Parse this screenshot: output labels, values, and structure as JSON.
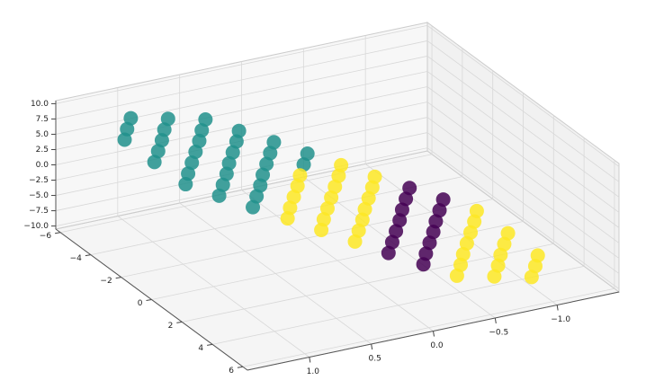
{
  "chart_data": {
    "type": "scatter3d",
    "xlim": [
      -1.5,
      1.5
    ],
    "ylim": [
      -6.3,
      6.3
    ],
    "zlim": [
      -10.5,
      10.5
    ],
    "xticks": [
      {
        "value": -1.0,
        "label": "−1.0"
      },
      {
        "value": -0.5,
        "label": "−0.5"
      },
      {
        "value": 0.0,
        "label": "0.0"
      },
      {
        "value": 0.5,
        "label": "0.5"
      },
      {
        "value": 1.0,
        "label": "1.0"
      }
    ],
    "yticks": [
      {
        "value": -6,
        "label": "−6"
      },
      {
        "value": -4,
        "label": "−4"
      },
      {
        "value": -2,
        "label": "−2"
      },
      0,
      2,
      4,
      6
    ],
    "zticks": [
      {
        "value": -10,
        "label": "−10.0"
      },
      {
        "value": -7.5,
        "label": "−7.5"
      },
      {
        "value": -5,
        "label": "−5.0"
      },
      {
        "value": -2.5,
        "label": "−2.5"
      },
      {
        "value": 0,
        "label": "0.0"
      },
      {
        "value": 2.5,
        "label": "2.5"
      },
      {
        "value": 5,
        "label": "5.0"
      },
      {
        "value": 7.5,
        "label": "7.5"
      },
      {
        "value": 10,
        "label": "10.0"
      }
    ],
    "grid": true,
    "series": [
      {
        "color": "#21918c",
        "x": [
          1.06,
          1.09,
          1.11,
          0.86,
          0.89,
          0.91,
          0.94,
          0.97,
          0.66,
          0.69,
          0.71,
          0.74,
          0.77,
          0.8,
          0.82,
          0.49,
          0.51,
          0.54,
          0.57,
          0.59,
          0.62,
          0.65,
          0.31,
          0.34,
          0.37,
          0.4,
          0.42,
          0.45,
          0.48,
          0.14,
          0.17
        ],
        "y": [
          -4.95,
          -4.95,
          -4.95,
          -4.13,
          -4.13,
          -4.13,
          -4.13,
          -4.13,
          -3.3,
          -3.3,
          -3.3,
          -3.3,
          -3.3,
          -3.3,
          -3.3,
          -2.48,
          -2.48,
          -2.48,
          -2.48,
          -2.48,
          -2.48,
          -2.48,
          -1.65,
          -1.65,
          -1.65,
          -1.65,
          -1.65,
          -1.65,
          -1.65,
          -0.83,
          -0.83
        ],
        "z": [
          8.22,
          6.57,
          4.92,
          8.78,
          7.13,
          5.48,
          3.83,
          2.18,
          9.33,
          7.68,
          6.03,
          4.38,
          2.73,
          1.08,
          -0.57,
          8.24,
          6.59,
          4.94,
          3.29,
          1.64,
          -0.02,
          -1.67,
          7.14,
          5.49,
          3.84,
          2.19,
          0.54,
          -1.11,
          -2.76,
          6.05,
          4.4
        ]
      },
      {
        "color": "#fde725",
        "x": [
          0.2,
          0.22,
          0.25,
          0.28,
          0.3,
          -0.03,
          -0.01,
          0.02,
          0.05,
          0.08,
          0.11,
          0.13,
          -0.2,
          -0.18,
          -0.15,
          -0.12,
          -0.1,
          -0.07,
          -0.04,
          -0.72,
          -0.7,
          -0.67,
          -0.64,
          -0.61,
          -0.59,
          -0.56,
          -0.87,
          -0.84,
          -0.81,
          -0.79,
          -0.76,
          -1.01,
          -0.99,
          -0.96
        ],
        "y": [
          -0.83,
          -0.83,
          -0.83,
          -0.83,
          -0.83,
          0,
          0,
          0,
          0,
          0,
          0,
          0,
          0.83,
          0.83,
          0.83,
          0.83,
          0.83,
          0.83,
          0.83,
          3.3,
          3.3,
          3.3,
          3.3,
          3.3,
          3.3,
          3.3,
          4.13,
          4.13,
          4.13,
          4.13,
          4.13,
          4.95,
          4.95,
          4.95
        ],
        "z": [
          2.75,
          1.1,
          -0.56,
          -2.21,
          -3.86,
          4.95,
          3.3,
          1.65,
          0,
          -1.65,
          -3.3,
          -4.95,
          3.86,
          2.21,
          0.56,
          -1.1,
          -2.75,
          -4.4,
          -6.05,
          0.57,
          -1.08,
          -2.73,
          -4.38,
          -6.03,
          -7.68,
          -9.33,
          -2.18,
          -3.83,
          -5.48,
          -7.13,
          -8.78,
          -4.92,
          -6.57,
          -8.22
        ]
      },
      {
        "color": "#440154",
        "x": [
          -0.38,
          -0.35,
          -0.32,
          -0.3,
          -0.27,
          -0.24,
          -0.21,
          -0.55,
          -0.52,
          -0.49,
          -0.47,
          -0.44,
          -0.41,
          -0.39
        ],
        "y": [
          1.65,
          1.65,
          1.65,
          1.65,
          1.65,
          1.65,
          1.65,
          2.48,
          2.48,
          2.48,
          2.48,
          2.48,
          2.48,
          2.48
        ],
        "z": [
          2.76,
          1.11,
          -0.54,
          -2.19,
          -3.84,
          -5.49,
          -7.14,
          1.67,
          0.02,
          -1.64,
          -3.29,
          -4.94,
          -6.59,
          -8.24
        ]
      }
    ]
  }
}
